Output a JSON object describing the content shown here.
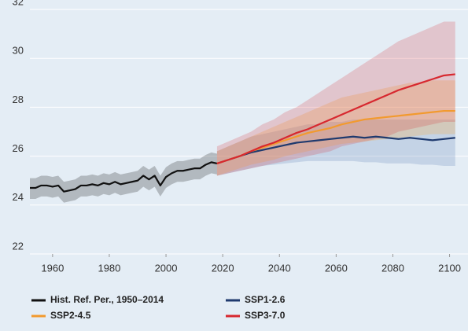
{
  "chart_data": {
    "type": "line",
    "series": [
      {
        "name": "Hist. Ref. Per., 1950–2014",
        "color": "#111111",
        "x": [
          1950,
          1952,
          1954,
          1956,
          1958,
          1960,
          1962,
          1964,
          1966,
          1968,
          1970,
          1972,
          1974,
          1976,
          1978,
          1980,
          1982,
          1984,
          1986,
          1988,
          1990,
          1992,
          1994,
          1996,
          1998,
          2000,
          2002,
          2004,
          2006,
          2008,
          2010,
          2012,
          2014,
          2016,
          2018
        ],
        "values": [
          24.75,
          24.7,
          24.7,
          24.8,
          24.8,
          24.75,
          24.8,
          24.55,
          24.6,
          24.65,
          24.8,
          24.8,
          24.85,
          24.8,
          24.9,
          24.85,
          24.95,
          24.85,
          24.9,
          24.95,
          25.0,
          25.2,
          25.05,
          25.2,
          24.8,
          25.15,
          25.3,
          25.4,
          25.4,
          25.45,
          25.5,
          25.5,
          25.65,
          25.75,
          25.7
        ],
        "low": [
          24.3,
          24.25,
          24.25,
          24.35,
          24.35,
          24.3,
          24.35,
          24.1,
          24.15,
          24.2,
          24.35,
          24.35,
          24.4,
          24.35,
          24.45,
          24.4,
          24.5,
          24.4,
          24.45,
          24.5,
          24.55,
          24.75,
          24.6,
          24.75,
          24.35,
          24.7,
          24.85,
          24.95,
          24.95,
          25.0,
          25.05,
          25.05,
          25.2,
          25.3,
          25.25
        ],
        "high": [
          25.15,
          25.1,
          25.1,
          25.2,
          25.2,
          25.15,
          25.2,
          24.95,
          25.0,
          25.05,
          25.2,
          25.2,
          25.25,
          25.2,
          25.3,
          25.25,
          25.35,
          25.25,
          25.3,
          25.35,
          25.4,
          25.6,
          25.45,
          25.6,
          25.2,
          25.55,
          25.7,
          25.8,
          25.8,
          25.85,
          25.9,
          25.9,
          26.05,
          26.15,
          26.1
        ],
        "band_color": "rgba(0,0,0,0.22)"
      },
      {
        "name": "SSP1-2.6",
        "color": "#1f3a6e",
        "x": [
          2018,
          2022,
          2026,
          2030,
          2034,
          2038,
          2042,
          2046,
          2050,
          2054,
          2058,
          2062,
          2066,
          2070,
          2074,
          2078,
          2082,
          2086,
          2090,
          2094,
          2098,
          2102
        ],
        "values": [
          25.7,
          25.85,
          26.0,
          26.15,
          26.25,
          26.35,
          26.45,
          26.55,
          26.6,
          26.65,
          26.7,
          26.75,
          26.8,
          26.75,
          26.8,
          26.75,
          26.7,
          26.75,
          26.7,
          26.65,
          26.7,
          26.75
        ],
        "low": [
          25.2,
          25.3,
          25.4,
          25.5,
          25.6,
          25.65,
          25.7,
          25.75,
          25.8,
          25.8,
          25.8,
          25.8,
          25.8,
          25.75,
          25.75,
          25.7,
          25.7,
          25.7,
          25.65,
          25.65,
          25.6,
          25.6
        ],
        "high": [
          26.2,
          26.4,
          26.6,
          26.8,
          26.9,
          27.0,
          27.1,
          27.2,
          27.3,
          27.3,
          27.4,
          27.4,
          27.5,
          27.5,
          27.5,
          27.5,
          27.5,
          27.5,
          27.5,
          27.5,
          27.5,
          27.5
        ],
        "band_color": "rgba(70,110,170,0.2)"
      },
      {
        "name": "SSP2-4.5",
        "color": "#f29a2e",
        "x": [
          2018,
          2022,
          2026,
          2030,
          2034,
          2038,
          2042,
          2046,
          2050,
          2054,
          2058,
          2062,
          2066,
          2070,
          2074,
          2078,
          2082,
          2086,
          2090,
          2094,
          2098,
          2102
        ],
        "values": [
          25.7,
          25.85,
          26.0,
          26.2,
          26.35,
          26.5,
          26.65,
          26.8,
          26.95,
          27.05,
          27.15,
          27.3,
          27.4,
          27.5,
          27.55,
          27.6,
          27.65,
          27.7,
          27.75,
          27.8,
          27.85,
          27.85
        ],
        "low": [
          25.2,
          25.35,
          25.5,
          25.65,
          25.75,
          25.85,
          26.0,
          26.1,
          26.2,
          26.3,
          26.4,
          26.5,
          26.55,
          26.6,
          26.65,
          26.7,
          26.75,
          26.8,
          26.85,
          26.9,
          26.9,
          26.9
        ],
        "high": [
          26.2,
          26.4,
          26.6,
          26.8,
          27.0,
          27.2,
          27.4,
          27.6,
          27.8,
          28.0,
          28.2,
          28.4,
          28.5,
          28.6,
          28.7,
          28.8,
          28.9,
          29.0,
          29.0,
          29.1,
          29.1,
          29.1
        ],
        "band_color": "rgba(242,180,90,0.3)"
      },
      {
        "name": "SSP3-7.0",
        "color": "#d7282f",
        "x": [
          2018,
          2022,
          2026,
          2030,
          2034,
          2038,
          2042,
          2046,
          2050,
          2054,
          2058,
          2062,
          2066,
          2070,
          2074,
          2078,
          2082,
          2086,
          2090,
          2094,
          2098,
          2102
        ],
        "values": [
          25.7,
          25.85,
          26.0,
          26.2,
          26.4,
          26.55,
          26.75,
          26.95,
          27.1,
          27.3,
          27.5,
          27.7,
          27.9,
          28.1,
          28.3,
          28.5,
          28.7,
          28.85,
          29.0,
          29.15,
          29.3,
          29.35
        ],
        "low": [
          25.2,
          25.3,
          25.4,
          25.5,
          25.6,
          25.7,
          25.8,
          25.9,
          26.0,
          26.1,
          26.2,
          26.4,
          26.5,
          26.6,
          26.7,
          26.8,
          27.0,
          27.1,
          27.2,
          27.3,
          27.4,
          27.4
        ],
        "high": [
          26.4,
          26.6,
          26.8,
          27.0,
          27.3,
          27.5,
          27.8,
          28.0,
          28.3,
          28.6,
          28.9,
          29.2,
          29.5,
          29.8,
          30.1,
          30.4,
          30.7,
          30.9,
          31.1,
          31.3,
          31.5,
          31.5
        ],
        "band_color": "rgba(215,40,47,0.2)"
      }
    ],
    "xlim": [
      1952,
      2106.5
    ],
    "xticks": [
      1960,
      1980,
      2000,
      2020,
      2040,
      2060,
      2080,
      2100
    ],
    "ylim": [
      22,
      32
    ],
    "yticks": [
      22,
      24,
      26,
      28,
      30,
      32
    ],
    "grid": true
  }
}
